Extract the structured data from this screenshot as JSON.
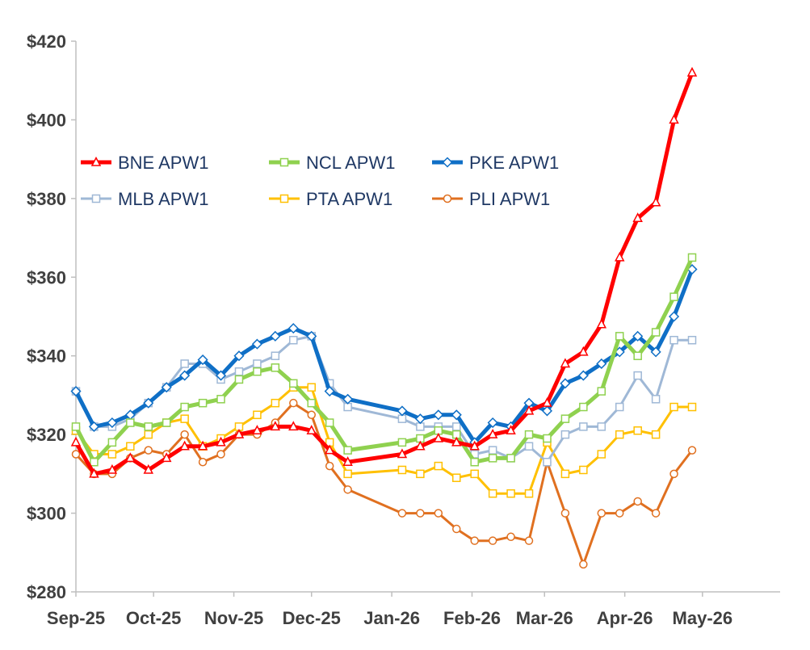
{
  "chart_data": {
    "type": "line",
    "title": "",
    "xlabel": "",
    "ylabel": "",
    "ylim": [
      280,
      420
    ],
    "yticks": [
      280,
      300,
      320,
      340,
      360,
      380,
      400,
      420
    ],
    "ytick_labels": [
      "$280",
      "$300",
      "$320",
      "$340",
      "$360",
      "$380",
      "$400",
      "$420"
    ],
    "xlim": [
      "2025-09-01",
      "2026-05-31"
    ],
    "xticks": [
      "2025-09-01",
      "2025-10-01",
      "2025-11-01",
      "2025-12-01",
      "2026-01-01",
      "2026-02-01",
      "2026-03-01",
      "2026-04-01",
      "2026-05-01"
    ],
    "xtick_labels": [
      "Sep-25",
      "Oct-25",
      "Nov-25",
      "Dec-25",
      "Jan-26",
      "Feb-26",
      "Mar-26",
      "Apr-26",
      "May-26"
    ],
    "grid": false,
    "legend_position": "upper-left",
    "x": [
      "2025-09-01",
      "2025-09-08",
      "2025-09-15",
      "2025-09-22",
      "2025-09-29",
      "2025-10-06",
      "2025-10-13",
      "2025-10-20",
      "2025-10-27",
      "2025-11-03",
      "2025-11-10",
      "2025-11-17",
      "2025-11-24",
      "2025-12-01",
      "2025-12-08",
      "2025-12-15",
      "2026-01-05",
      "2026-01-12",
      "2026-01-19",
      "2026-01-26",
      "2026-02-02",
      "2026-02-09",
      "2026-02-16",
      "2026-02-23",
      "2026-03-02",
      "2026-03-09",
      "2026-03-16",
      "2026-03-23",
      "2026-03-30",
      "2026-04-06",
      "2026-04-13",
      "2026-04-20",
      "2026-04-27"
    ],
    "series": [
      {
        "name": "BNE APW1",
        "color": "#ff0000",
        "marker": "triangle",
        "stroke_width": 5,
        "values": [
          318,
          310,
          311,
          314,
          311,
          314,
          317,
          317,
          318,
          320,
          321,
          322,
          322,
          321,
          316,
          313,
          315,
          317,
          319,
          318,
          317,
          320,
          321,
          326,
          328,
          338,
          341,
          348,
          365,
          375,
          379,
          400,
          412
        ]
      },
      {
        "name": "NCL APW1",
        "color": "#8fd14f",
        "marker": "square",
        "stroke_width": 5,
        "values": [
          322,
          313,
          318,
          323,
          322,
          323,
          327,
          328,
          329,
          334,
          336,
          337,
          333,
          328,
          323,
          316,
          318,
          319,
          321,
          320,
          313,
          314,
          314,
          320,
          319,
          324,
          327,
          331,
          345,
          340,
          346,
          355,
          365
        ]
      },
      {
        "name": "PKE APW1",
        "color": "#0f6fc6",
        "marker": "diamond",
        "stroke_width": 5,
        "values": [
          331,
          322,
          323,
          325,
          328,
          332,
          335,
          339,
          335,
          340,
          343,
          345,
          347,
          345,
          331,
          329,
          326,
          324,
          325,
          325,
          318,
          323,
          322,
          328,
          326,
          333,
          335,
          338,
          341,
          345,
          341,
          350,
          362
        ]
      },
      {
        "name": "MLB APW1",
        "color": "#9fb8d6",
        "marker": "square",
        "stroke_width": 3,
        "values": [
          331,
          322,
          322,
          324,
          328,
          332,
          338,
          338,
          334,
          336,
          338,
          340,
          344,
          345,
          333,
          327,
          324,
          322,
          322,
          322,
          315,
          316,
          314,
          317,
          313,
          320,
          322,
          322,
          327,
          335,
          329,
          344,
          344
        ]
      },
      {
        "name": "PTA APW1",
        "color": "#ffc000",
        "marker": "square",
        "stroke_width": 3,
        "values": [
          321,
          315,
          315,
          317,
          320,
          323,
          324,
          317,
          319,
          322,
          325,
          328,
          332,
          332,
          318,
          310,
          311,
          310,
          312,
          309,
          310,
          305,
          305,
          305,
          318,
          310,
          311,
          315,
          320,
          321,
          320,
          327,
          327
        ]
      },
      {
        "name": "PLI APW1",
        "color": "#e07020",
        "marker": "circle",
        "stroke_width": 3,
        "values": [
          315,
          310,
          310,
          314,
          316,
          315,
          320,
          313,
          315,
          320,
          320,
          323,
          328,
          325,
          312,
          306,
          300,
          300,
          300,
          296,
          293,
          293,
          294,
          293,
          313,
          300,
          287,
          300,
          300,
          303,
          300,
          310,
          316
        ]
      }
    ]
  }
}
